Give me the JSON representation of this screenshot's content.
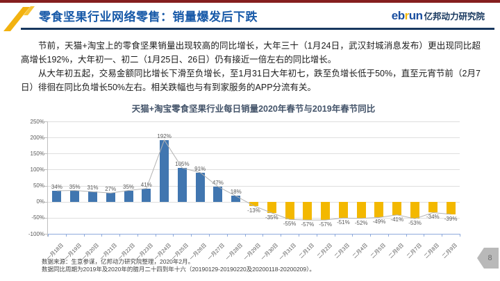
{
  "header": {
    "title": "零食坚果行业网络零售：销量爆发后下跌",
    "logo": {
      "eb": "eb",
      "r": "r",
      "un": "un",
      "cn": "亿邦动力研究院"
    },
    "colors": {
      "top_strip": "#851f1f",
      "title": "#1759a8",
      "rule": "#17375e",
      "logo_blue": "#1b4fa0",
      "logo_yellow": "#f2b705"
    }
  },
  "body": {
    "paragraph1": "节前，天猫+淘宝上的零食坚果销量出现较高的同比增长，大年三十（1月24日，武汉封城消息发布）更出现同比超高增长192%，大年初一、初二（1月25日、26日）仍有接近一倍左右的同比增长。",
    "paragraph2": "从大年初五起，交易金额同比增长下滑至负增长，至1月31日大年初七，跌至负增长低于50%，直至元宵节前（2月7日）徘徊在同比负增长50%左右。相关跌幅也与有到家服务的APP分流有关。"
  },
  "chart_data": {
    "type": "bar",
    "title": "天猫+淘宝零食坚果行业每日销量2020年春节与2019年春节同比",
    "categories": [
      "一月18日",
      "一月19日",
      "一月20日",
      "一月21日",
      "一月22日",
      "一月23日",
      "一月24日",
      "一月25日",
      "一月26日",
      "一月27日",
      "一月28日",
      "一月29日",
      "一月30日",
      "一月31日",
      "二月1日",
      "二月2日",
      "二月3日",
      "二月4日",
      "二月5日",
      "二月6日",
      "二月7日",
      "二月8日",
      "二月9日"
    ],
    "values": [
      34,
      35,
      31,
      27,
      35,
      41,
      192,
      105,
      91,
      47,
      18,
      -13,
      -35,
      -55,
      -57,
      -57,
      -51,
      -52,
      -49,
      -41,
      -53,
      -34,
      -39
    ],
    "labels": [
      "34%",
      "35%",
      "31%",
      "27%",
      "35%",
      "41%",
      "192%",
      "105%",
      "91%",
      "47%",
      "18%",
      "-13%",
      "-35%",
      "-55%",
      "-57%",
      "-57%",
      "-51%",
      "-52%",
      "-49%",
      "-41%",
      "-53%",
      "-34%",
      "-39%"
    ],
    "xlabel": "",
    "ylabel": "",
    "ylim": [
      -100,
      250
    ],
    "yticks": [
      "250%",
      "200%",
      "150%",
      "100%",
      "50%",
      "0%",
      "-50%",
      "-100%"
    ],
    "grid": true,
    "legend": "none",
    "colors": {
      "positive_bar": "#4176b0",
      "negative_bar": "#f3b800",
      "trend_line": "#b3b3b3",
      "gridline": "#dedede",
      "axis": "#8faadc",
      "tick_text": "#595959",
      "title": "#44546a"
    }
  },
  "footer": {
    "source_line": "数据来源：生意参谋，亿邦动力研究院整理，2020年2月。",
    "period_line": "数据同比周期为2019年及2020年的腊月二十四到年十六（20190129-20190220及20200118-20200209）。",
    "page_number": "8"
  }
}
